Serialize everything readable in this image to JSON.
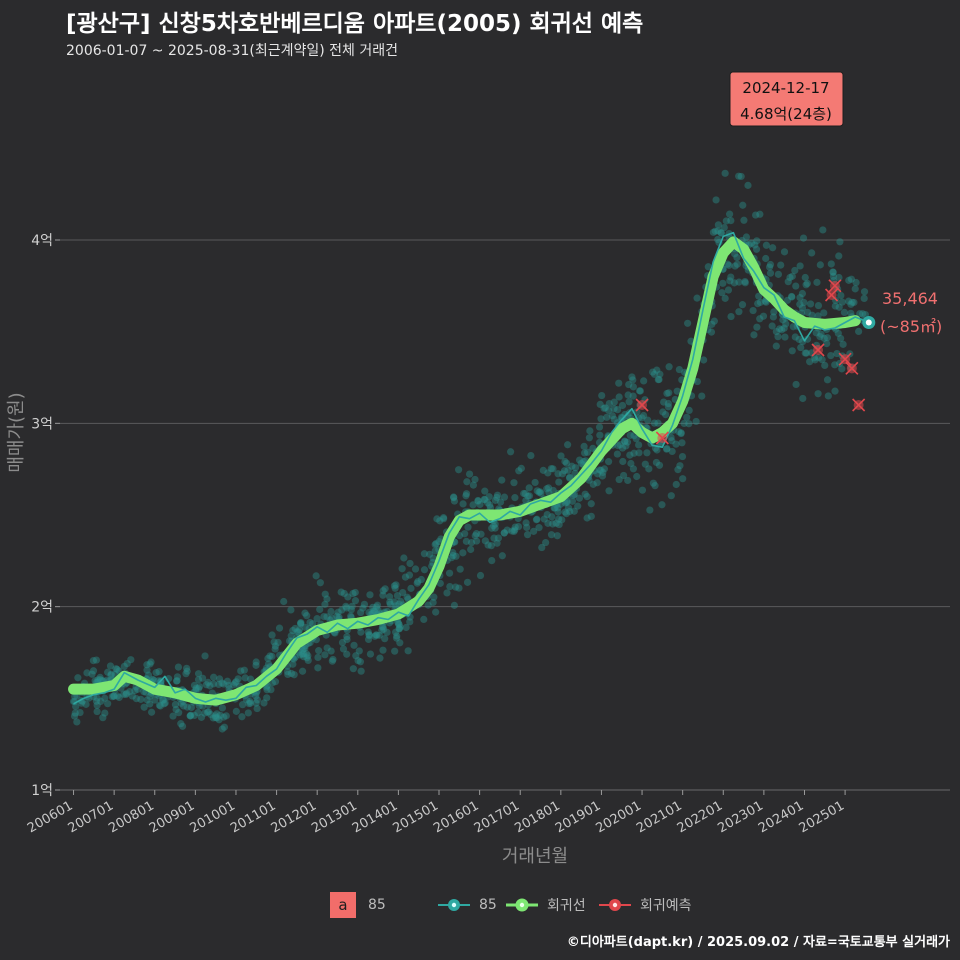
{
  "title": "[광산구] 신창5차호반베르디움 아파트(2005) 회귀선 예측",
  "subtitle": "2006-01-07 ~ 2025-08-31(최근계약일) 전체 거래건",
  "caption": "©디아파트(dapt.kr) / 2025.09.02 / 자료=국토교통부 실거래가",
  "colors": {
    "background": "#2b2b2d",
    "points": "#2a8f8a",
    "monthly_line": "#2fa9a2",
    "regression": "#7ee673",
    "prediction": "#e0474c",
    "highlight_box": "#f47a74",
    "end_label": "#f07070"
  },
  "highlight": {
    "date": "2024-12-17",
    "text": "4.68억(24층)"
  },
  "end_label": {
    "value": "35,464",
    "area": "(~85㎡)"
  },
  "legend": {
    "swatch_letter": "a",
    "swatch_label": "85",
    "items": [
      {
        "name": "85",
        "icon": "teal-point-line-icon"
      },
      {
        "name": "회귀선",
        "icon": "green-point-line-icon"
      },
      {
        "name": "회귀예측",
        "icon": "red-point-line-icon"
      }
    ]
  },
  "chart_data": {
    "type": "scatter",
    "xlabel": "거래년월",
    "ylabel": "매매가(원)",
    "y_unit": "억",
    "ylim": [
      1.0,
      4.9
    ],
    "xlim": [
      "2005-09",
      "2027-08"
    ],
    "y_ticks": [
      {
        "value": 1,
        "label": "1억"
      },
      {
        "value": 2,
        "label": "2억"
      },
      {
        "value": 3,
        "label": "3억"
      },
      {
        "value": 4,
        "label": "4억"
      }
    ],
    "x_ticks": [
      "200601",
      "200701",
      "200801",
      "200901",
      "201001",
      "201101",
      "201201",
      "201301",
      "201401",
      "201501",
      "201601",
      "201701",
      "201801",
      "201901",
      "202001",
      "202101",
      "202201",
      "202301",
      "202401",
      "202501"
    ],
    "grid": true,
    "series": [
      {
        "name": "회귀선",
        "kind": "regression",
        "points": [
          [
            "2006-01",
            1.55
          ],
          [
            "2006-07",
            1.55
          ],
          [
            "2007-01",
            1.57
          ],
          [
            "2007-04",
            1.62
          ],
          [
            "2007-08",
            1.6
          ],
          [
            "2008-01",
            1.55
          ],
          [
            "2008-07",
            1.53
          ],
          [
            "2009-01",
            1.5
          ],
          [
            "2009-07",
            1.49
          ],
          [
            "2010-01",
            1.52
          ],
          [
            "2010-07",
            1.57
          ],
          [
            "2011-01",
            1.66
          ],
          [
            "2011-07",
            1.8
          ],
          [
            "2012-01",
            1.87
          ],
          [
            "2012-07",
            1.9
          ],
          [
            "2013-01",
            1.91
          ],
          [
            "2013-07",
            1.93
          ],
          [
            "2014-01",
            1.96
          ],
          [
            "2014-07",
            2.03
          ],
          [
            "2014-10",
            2.1
          ],
          [
            "2015-01",
            2.22
          ],
          [
            "2015-04",
            2.38
          ],
          [
            "2015-07",
            2.47
          ],
          [
            "2015-10",
            2.5
          ],
          [
            "2016-07",
            2.5
          ],
          [
            "2017-01",
            2.52
          ],
          [
            "2017-07",
            2.56
          ],
          [
            "2018-01",
            2.6
          ],
          [
            "2018-07",
            2.7
          ],
          [
            "2019-01",
            2.85
          ],
          [
            "2019-07",
            2.97
          ],
          [
            "2019-10",
            3.0
          ],
          [
            "2020-01",
            2.95
          ],
          [
            "2020-04",
            2.92
          ],
          [
            "2020-07",
            2.95
          ],
          [
            "2020-10",
            3.0
          ],
          [
            "2021-01",
            3.12
          ],
          [
            "2021-04",
            3.3
          ],
          [
            "2021-07",
            3.55
          ],
          [
            "2021-10",
            3.8
          ],
          [
            "2022-01",
            3.93
          ],
          [
            "2022-04",
            3.99
          ],
          [
            "2022-07",
            3.95
          ],
          [
            "2022-10",
            3.85
          ],
          [
            "2023-01",
            3.73
          ],
          [
            "2023-04",
            3.68
          ],
          [
            "2023-07",
            3.62
          ],
          [
            "2023-10",
            3.58
          ],
          [
            "2024-01",
            3.55
          ],
          [
            "2024-07",
            3.54
          ],
          [
            "2025-01",
            3.55
          ],
          [
            "2025-04",
            3.56
          ]
        ]
      },
      {
        "name": "85",
        "kind": "monthly",
        "points": [
          [
            "2006-01",
            1.47
          ],
          [
            "2006-04",
            1.5
          ],
          [
            "2006-07",
            1.52
          ],
          [
            "2006-10",
            1.53
          ],
          [
            "2007-01",
            1.55
          ],
          [
            "2007-04",
            1.64
          ],
          [
            "2007-08",
            1.6
          ],
          [
            "2008-01",
            1.56
          ],
          [
            "2008-04",
            1.62
          ],
          [
            "2008-07",
            1.53
          ],
          [
            "2008-10",
            1.55
          ],
          [
            "2009-01",
            1.5
          ],
          [
            "2009-04",
            1.48
          ],
          [
            "2009-07",
            1.5
          ],
          [
            "2009-10",
            1.49
          ],
          [
            "2010-01",
            1.5
          ],
          [
            "2010-04",
            1.56
          ],
          [
            "2010-07",
            1.57
          ],
          [
            "2010-10",
            1.62
          ],
          [
            "2011-01",
            1.66
          ],
          [
            "2011-04",
            1.75
          ],
          [
            "2011-07",
            1.83
          ],
          [
            "2011-10",
            1.85
          ],
          [
            "2012-01",
            1.89
          ],
          [
            "2012-04",
            1.86
          ],
          [
            "2012-07",
            1.91
          ],
          [
            "2012-10",
            1.88
          ],
          [
            "2013-01",
            1.92
          ],
          [
            "2013-04",
            1.9
          ],
          [
            "2013-07",
            1.94
          ],
          [
            "2013-10",
            1.93
          ],
          [
            "2014-01",
            1.97
          ],
          [
            "2014-04",
            1.95
          ],
          [
            "2014-07",
            2.04
          ],
          [
            "2014-10",
            2.12
          ],
          [
            "2015-01",
            2.25
          ],
          [
            "2015-04",
            2.4
          ],
          [
            "2015-07",
            2.49
          ],
          [
            "2015-10",
            2.48
          ],
          [
            "2016-01",
            2.51
          ],
          [
            "2016-04",
            2.46
          ],
          [
            "2016-07",
            2.48
          ],
          [
            "2016-10",
            2.52
          ],
          [
            "2017-01",
            2.5
          ],
          [
            "2017-04",
            2.56
          ],
          [
            "2017-07",
            2.58
          ],
          [
            "2017-10",
            2.57
          ],
          [
            "2018-01",
            2.62
          ],
          [
            "2018-04",
            2.66
          ],
          [
            "2018-07",
            2.72
          ],
          [
            "2018-10",
            2.78
          ],
          [
            "2019-01",
            2.85
          ],
          [
            "2019-04",
            2.95
          ],
          [
            "2019-07",
            3.02
          ],
          [
            "2019-10",
            3.08
          ],
          [
            "2020-01",
            2.97
          ],
          [
            "2020-04",
            2.88
          ],
          [
            "2020-07",
            2.87
          ],
          [
            "2020-10",
            2.99
          ],
          [
            "2021-01",
            3.15
          ],
          [
            "2021-04",
            3.35
          ],
          [
            "2021-07",
            3.62
          ],
          [
            "2021-10",
            3.88
          ],
          [
            "2022-01",
            4.02
          ],
          [
            "2022-04",
            4.04
          ],
          [
            "2022-07",
            3.9
          ],
          [
            "2022-10",
            3.83
          ],
          [
            "2023-01",
            3.74
          ],
          [
            "2023-04",
            3.7
          ],
          [
            "2023-07",
            3.58
          ],
          [
            "2023-10",
            3.56
          ],
          [
            "2024-01",
            3.45
          ],
          [
            "2024-04",
            3.53
          ],
          [
            "2024-07",
            3.51
          ],
          [
            "2024-10",
            3.52
          ],
          [
            "2025-01",
            3.55
          ],
          [
            "2025-04",
            3.58
          ],
          [
            "2025-08",
            3.55
          ]
        ]
      },
      {
        "name": "회귀예측",
        "kind": "prediction",
        "points": [
          [
            "2020-01",
            3.1
          ],
          [
            "2020-07",
            2.92
          ],
          [
            "2024-05",
            3.4
          ],
          [
            "2024-09",
            3.7
          ],
          [
            "2024-10",
            3.75
          ],
          [
            "2025-01",
            3.35
          ],
          [
            "2025-03",
            3.3
          ],
          [
            "2025-05",
            3.1
          ]
        ]
      }
    ],
    "scatter_bands": [
      [
        "2006-01",
        1.47,
        0.05
      ],
      [
        "2006-07",
        1.55,
        0.06
      ],
      [
        "2007-01",
        1.57,
        0.06
      ],
      [
        "2007-07",
        1.62,
        0.07
      ],
      [
        "2008-01",
        1.56,
        0.08
      ],
      [
        "2008-07",
        1.53,
        0.08
      ],
      [
        "2009-01",
        1.5,
        0.08
      ],
      [
        "2009-07",
        1.49,
        0.09
      ],
      [
        "2010-01",
        1.52,
        0.09
      ],
      [
        "2010-07",
        1.57,
        0.09
      ],
      [
        "2011-01",
        1.66,
        0.1
      ],
      [
        "2011-07",
        1.8,
        0.1
      ],
      [
        "2012-01",
        1.87,
        0.1
      ],
      [
        "2012-07",
        1.9,
        0.1
      ],
      [
        "2013-01",
        1.91,
        0.1
      ],
      [
        "2013-07",
        1.93,
        0.1
      ],
      [
        "2014-01",
        1.96,
        0.1
      ],
      [
        "2014-07",
        2.03,
        0.11
      ],
      [
        "2015-01",
        2.22,
        0.14
      ],
      [
        "2015-07",
        2.47,
        0.15
      ],
      [
        "2016-01",
        2.5,
        0.13
      ],
      [
        "2016-07",
        2.5,
        0.12
      ],
      [
        "2017-01",
        2.52,
        0.12
      ],
      [
        "2017-07",
        2.56,
        0.12
      ],
      [
        "2018-01",
        2.6,
        0.12
      ],
      [
        "2018-07",
        2.7,
        0.13
      ],
      [
        "2019-01",
        2.85,
        0.14
      ],
      [
        "2019-07",
        2.97,
        0.15
      ],
      [
        "2020-01",
        2.95,
        0.15
      ],
      [
        "2020-07",
        2.95,
        0.16
      ],
      [
        "2021-01",
        3.12,
        0.17
      ],
      [
        "2021-07",
        3.55,
        0.18
      ],
      [
        "2022-01",
        3.93,
        0.17
      ],
      [
        "2022-07",
        3.95,
        0.18
      ],
      [
        "2023-01",
        3.73,
        0.15
      ],
      [
        "2023-07",
        3.62,
        0.15
      ],
      [
        "2024-01",
        3.55,
        0.17
      ],
      [
        "2024-07",
        3.54,
        0.2
      ],
      [
        "2025-01",
        3.55,
        0.18
      ],
      [
        "2025-07",
        3.55,
        0.12
      ]
    ]
  }
}
